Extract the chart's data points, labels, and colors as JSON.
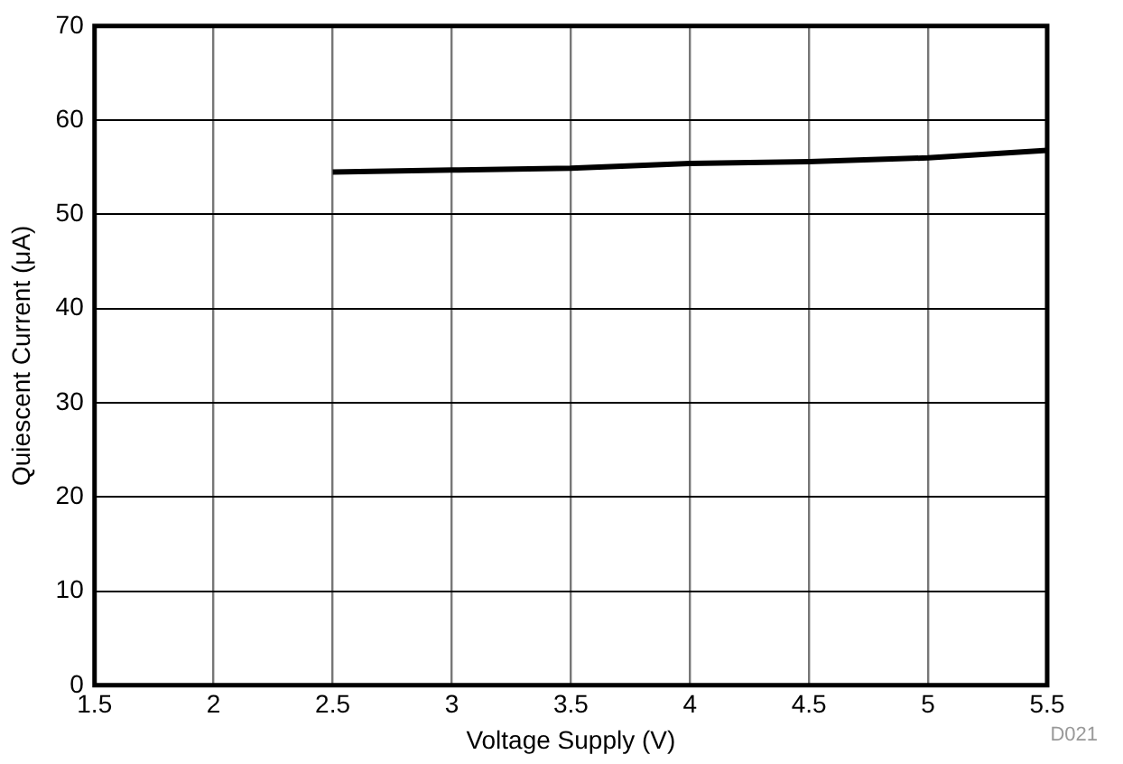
{
  "chart_data": {
    "type": "line",
    "xlabel": "Voltage Supply (V)",
    "ylabel": "Quiescent Current (μA)",
    "x": [
      2.5,
      3,
      3.5,
      4,
      4.5,
      5,
      5.5
    ],
    "series": [
      {
        "color": "#000000",
        "values": [
          54.5,
          54.7,
          54.9,
          55.4,
          55.6,
          56.0,
          56.8
        ]
      }
    ],
    "xlim": [
      1.5,
      5.5
    ],
    "xticks": [
      1.5,
      2,
      2.5,
      3,
      3.5,
      4,
      4.5,
      5,
      5.5
    ],
    "ylim": [
      0,
      70
    ],
    "yticks": [
      0,
      10,
      20,
      30,
      40,
      50,
      60,
      70
    ],
    "grid": true,
    "legend": false,
    "marker": "none",
    "line_style": "solid",
    "annotations": [
      "D021"
    ]
  }
}
